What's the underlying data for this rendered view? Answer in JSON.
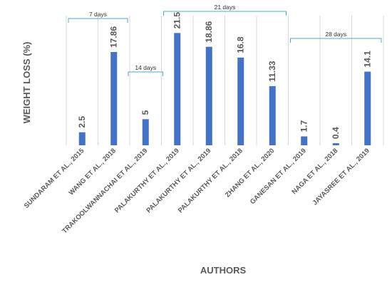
{
  "chart_data": {
    "type": "bar",
    "title": "",
    "xlabel": "AUTHORS",
    "ylabel": "WEIGHT LOSS (%)",
    "ylim": [
      0,
      24
    ],
    "grid": "vertical separators between categories",
    "categories": [
      "SUNDARAM ET AL., 2015",
      "WANG ET AL., 2018",
      "TRAKOOLWANNACHAI ET AL., 2019",
      "PALAKURTHY ET AL., 2019",
      "PALAKURTHY ET AL., 2019",
      "PALAKURTHY ET AL., 2018",
      "ZHANG ET AL., 2020",
      "GANESAN ET AL., 2019",
      "NAGA ET AL., 2018",
      "JAYASREE ET AL., 2019"
    ],
    "values": [
      2.5,
      17.86,
      5,
      21.5,
      18.86,
      16.8,
      11.33,
      1.7,
      0.4,
      14.1
    ],
    "data_labels": [
      "2.5",
      "17.86",
      "5",
      "21.5",
      "18.86",
      "16.8",
      "11.33",
      "1.7",
      "0.4",
      "14.1"
    ],
    "annotations": [
      {
        "label": "7 days",
        "from_category": 0,
        "to_category": 1
      },
      {
        "label": "14 days",
        "from_category": 2,
        "to_category": 2
      },
      {
        "label": "21 days",
        "from_category": 3,
        "to_category": 6
      },
      {
        "label": "28 days",
        "from_category": 7,
        "to_category": 9
      }
    ],
    "colors": {
      "bar": "#4472C4",
      "bracket": "#4BACC6",
      "text": "#595959",
      "grid": "#D9D9D9"
    }
  }
}
